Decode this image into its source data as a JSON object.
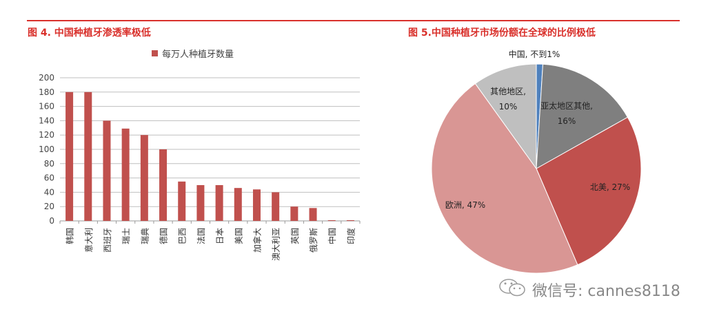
{
  "left_panel": {
    "title": "图 4. 中国种植牙渗透率极低",
    "legend_label": "每万人种植牙数量"
  },
  "right_panel": {
    "title": "图 5.中国种植牙市场份额在全球的比例极低"
  },
  "watermark": {
    "icon": "wechat-icon",
    "text": "微信号: cannes8118"
  },
  "colors": {
    "accent_red": "#d9302b",
    "bar": "#c0504d",
    "pie_china": "#4f81bd",
    "pie_apac_other": "#7f7f7f",
    "pie_north_america": "#c0504d",
    "pie_europe": "#d99694",
    "pie_other": "#bfbfbf"
  },
  "chart_data": [
    {
      "type": "bar",
      "title": "图 4. 中国种植牙渗透率极低",
      "xlabel": "",
      "ylabel": "",
      "ylim": [
        0,
        200
      ],
      "yticks": [
        0,
        20,
        40,
        60,
        80,
        100,
        120,
        140,
        160,
        180,
        200
      ],
      "grid": true,
      "legend_position": "top",
      "categories": [
        "韩国",
        "意大利",
        "西班牙",
        "瑞士",
        "瑞典",
        "德国",
        "巴西",
        "法国",
        "日本",
        "美国",
        "加拿大",
        "澳大利亚",
        "英国",
        "俄罗斯",
        "中国",
        "印度"
      ],
      "series": [
        {
          "name": "每万人种植牙数量",
          "values": [
            180,
            180,
            140,
            129,
            120,
            100,
            55,
            50,
            50,
            46,
            44,
            40,
            20,
            18,
            1,
            1
          ]
        }
      ]
    },
    {
      "type": "pie",
      "title": "图 5.中国种植牙市场份额在全球的比例极低",
      "categories": [
        "中国",
        "亚太地区其他",
        "北美",
        "欧洲",
        "其他地区"
      ],
      "values": [
        1,
        16,
        27,
        47,
        10
      ],
      "labels": [
        "中国, 不到1%",
        "亚太地区其他, 16%",
        "北美, 27%",
        "欧洲, 47%",
        "其他地区, 10%"
      ],
      "legend_position": "none"
    }
  ]
}
